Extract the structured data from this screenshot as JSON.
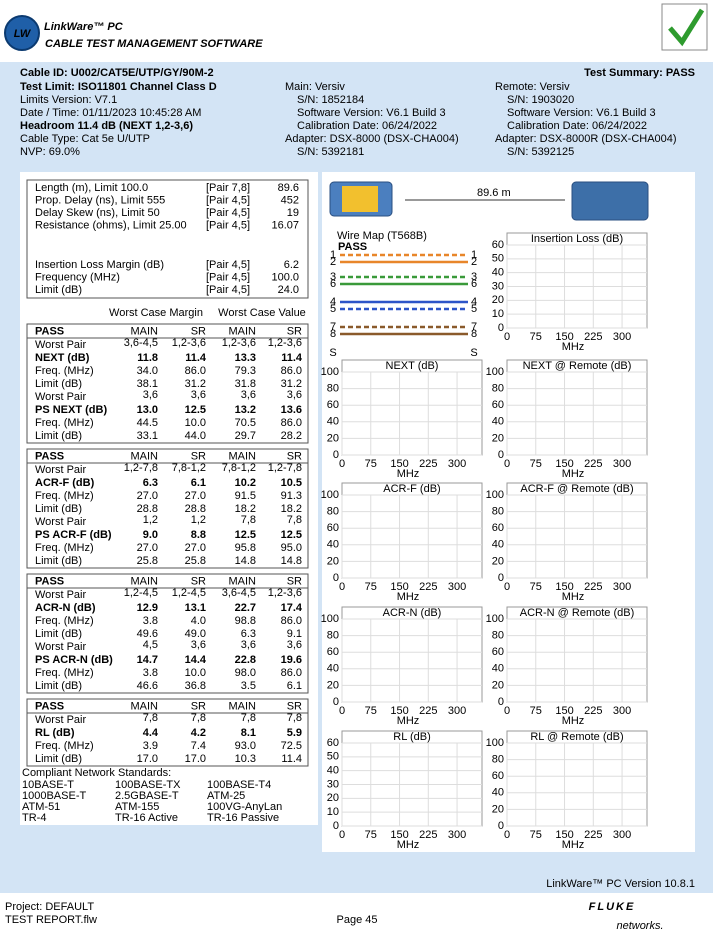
{
  "header": {
    "logo": "LW",
    "brand": "LinkWare™ PC",
    "tagline": "CABLE TEST MANAGEMENT SOFTWARE"
  },
  "summary": {
    "cable_id": "Cable ID: U002/CAT5E/UTP/GY/90M-2",
    "result": "Test Summary: PASS",
    "details": [
      "Test Limit: ISO11801 Channel Class D",
      "Limits Version: V7.1",
      "Date / Time: 01/11/2023  10:45:28 AM",
      "Headroom 11.4 dB (NEXT 1,2-3,6)",
      "Cable Type: Cat 5e U/UTP",
      "NVP: 69.0%"
    ],
    "main": [
      "Main: Versiv",
      "S/N: 1852184",
      "Software Version: V6.1 Build 3",
      "Calibration Date: 06/24/2022",
      "Adapter: DSX-8000 (DSX-CHA004)",
      "S/N: 5392181"
    ],
    "remote": [
      "Remote: Versiv",
      "S/N: 1903020",
      "Software Version: V6.1 Build 3",
      "Calibration Date: 06/24/2022",
      "Adapter: DSX-8000R (DSX-CHA004)",
      "S/N: 5392125"
    ]
  },
  "general": {
    "rows": [
      [
        "Length (m), Limit 100.0",
        "[Pair 7,8]",
        "89.6"
      ],
      [
        "Prop. Delay (ns), Limit 555",
        "[Pair 4,5]",
        "452"
      ],
      [
        "Delay Skew (ns), Limit 50",
        "[Pair 4,5]",
        "19"
      ],
      [
        "Resistance (ohms), Limit 25.00",
        "[Pair 4,5]",
        "16.07"
      ]
    ],
    "insertion_rows": [
      [
        "Insertion Loss Margin (dB)",
        "[Pair 4,5]",
        "6.2"
      ],
      [
        "Frequency (MHz)",
        "[Pair 4,5]",
        "100.0"
      ],
      [
        "Limit (dB)",
        "[Pair 4,5]",
        "24.0"
      ]
    ]
  },
  "table": {
    "headers": [
      "Worst Case Margin",
      "Worst Case Value"
    ],
    "sections": [
      {
        "columns": [
          "PASS",
          "MAIN",
          "SR",
          "MAIN",
          "SR"
        ],
        "rows": [
          [
            "Worst Pair",
            "3,6-4,5",
            "1,2-3,6",
            "1,2-3,6",
            "1,2-3,6"
          ],
          [
            "NEXT (dB)",
            "11.8",
            "11.4",
            "13.3",
            "11.4"
          ],
          [
            "Freq. (MHz)",
            "34.0",
            "86.0",
            "79.3",
            "86.0"
          ],
          [
            "Limit (dB)",
            "38.1",
            "31.2",
            "31.8",
            "31.2"
          ],
          [
            "Worst Pair",
            "3,6",
            "3,6",
            "3,6",
            "3,6"
          ],
          [
            "PS NEXT (dB)",
            "13.0",
            "12.5",
            "13.2",
            "13.6"
          ],
          [
            "Freq. (MHz)",
            "44.5",
            "10.0",
            "70.5",
            "86.0"
          ],
          [
            "Limit (dB)",
            "33.1",
            "44.0",
            "29.7",
            "28.2"
          ]
        ]
      },
      {
        "columns": [
          "PASS",
          "MAIN",
          "SR",
          "MAIN",
          "SR"
        ],
        "rows": [
          [
            "Worst Pair",
            "1,2-7,8",
            "7,8-1,2",
            "7,8-1,2",
            "1,2-7,8"
          ],
          [
            "ACR-F (dB)",
            "6.3",
            "6.1",
            "10.2",
            "10.5"
          ],
          [
            "Freq. (MHz)",
            "27.0",
            "27.0",
            "91.5",
            "91.3"
          ],
          [
            "Limit (dB)",
            "28.8",
            "28.8",
            "18.2",
            "18.2"
          ],
          [
            "Worst Pair",
            "1,2",
            "1,2",
            "7,8",
            "7,8"
          ],
          [
            "PS ACR-F (dB)",
            "9.0",
            "8.8",
            "12.5",
            "12.5"
          ],
          [
            "Freq. (MHz)",
            "27.0",
            "27.0",
            "95.8",
            "95.0"
          ],
          [
            "Limit (dB)",
            "25.8",
            "25.8",
            "14.8",
            "14.8"
          ]
        ]
      },
      {
        "columns": [
          "PASS",
          "MAIN",
          "SR",
          "MAIN",
          "SR"
        ],
        "rows": [
          [
            "Worst Pair",
            "1,2-4,5",
            "1,2-4,5",
            "3,6-4,5",
            "1,2-3,6"
          ],
          [
            "ACR-N (dB)",
            "12.9",
            "13.1",
            "22.7",
            "17.4"
          ],
          [
            "Freq. (MHz)",
            "3.8",
            "4.0",
            "98.8",
            "86.0"
          ],
          [
            "Limit (dB)",
            "49.6",
            "49.0",
            "6.3",
            "9.1"
          ],
          [
            "Worst Pair",
            "4,5",
            "3,6",
            "3,6",
            "3,6"
          ],
          [
            "PS ACR-N (dB)",
            "14.7",
            "14.4",
            "22.8",
            "19.6"
          ],
          [
            "Freq. (MHz)",
            "3.8",
            "10.0",
            "98.0",
            "86.0"
          ],
          [
            "Limit (dB)",
            "46.6",
            "36.8",
            "3.5",
            "6.1"
          ]
        ]
      },
      {
        "columns": [
          "PASS",
          "MAIN",
          "SR",
          "MAIN",
          "SR"
        ],
        "rows": [
          [
            "Worst Pair",
            "7,8",
            "7,8",
            "7,8",
            "7,8"
          ],
          [
            "RL (dB)",
            "4.4",
            "4.2",
            "8.1",
            "5.9"
          ],
          [
            "Freq. (MHz)",
            "3.9",
            "7.4",
            "93.0",
            "72.5"
          ],
          [
            "Limit (dB)",
            "17.0",
            "17.0",
            "10.3",
            "11.4"
          ]
        ]
      }
    ]
  },
  "standards": {
    "title": "Compliant Network Standards:",
    "items": [
      "10BASE-T",
      "100BASE-TX",
      "100BASE-T4",
      "1000BASE-T",
      "2.5GBASE-T",
      "ATM-25",
      "ATM-51",
      "ATM-155",
      "100VG-AnyLan",
      "TR-4",
      "TR-16 Active",
      "TR-16 Passive"
    ]
  },
  "link": {
    "length": "89.6 m"
  },
  "wire_map": {
    "title": "Wire Map (T568B)",
    "result": "PASS",
    "left_pins": [
      "1",
      "2",
      "3",
      "6",
      "4",
      "5",
      "7",
      "8",
      "S"
    ],
    "right_pins": [
      "1",
      "2",
      "3",
      "6",
      "4",
      "5",
      "7",
      "8",
      "S"
    ]
  },
  "charts": [
    {
      "title": "Insertion Loss (dB)",
      "ylim": [
        0,
        60
      ],
      "yticks": [
        0,
        10,
        20,
        30,
        40,
        50,
        60
      ],
      "xlim": [
        0,
        365
      ],
      "xticks": [
        0,
        75,
        150,
        225,
        300
      ],
      "xlabel": "MHz"
    },
    {
      "title": "NEXT (dB)",
      "ylim": [
        0,
        100
      ],
      "yticks": [
        0,
        20,
        40,
        60,
        80,
        100
      ],
      "xlim": [
        0,
        365
      ],
      "xticks": [
        0,
        75,
        150,
        225,
        300
      ],
      "xlabel": "MHz"
    },
    {
      "title": "NEXT @ Remote (dB)",
      "ylim": [
        0,
        100
      ],
      "yticks": [
        0,
        20,
        40,
        60,
        80,
        100
      ],
      "xlim": [
        0,
        365
      ],
      "xticks": [
        0,
        75,
        150,
        225,
        300
      ],
      "xlabel": "MHz"
    },
    {
      "title": "ACR-F (dB)",
      "ylim": [
        0,
        100
      ],
      "yticks": [
        0,
        20,
        40,
        60,
        80,
        100
      ],
      "xlim": [
        0,
        365
      ],
      "xticks": [
        0,
        75,
        150,
        225,
        300
      ],
      "xlabel": "MHz"
    },
    {
      "title": "ACR-F @ Remote (dB)",
      "ylim": [
        0,
        100
      ],
      "yticks": [
        0,
        20,
        40,
        60,
        80,
        100
      ],
      "xlim": [
        0,
        365
      ],
      "xticks": [
        0,
        75,
        150,
        225,
        300
      ],
      "xlabel": "MHz"
    },
    {
      "title": "ACR-N (dB)",
      "ylim": [
        0,
        100
      ],
      "yticks": [
        0,
        20,
        40,
        60,
        80,
        100
      ],
      "xlim": [
        0,
        365
      ],
      "xticks": [
        0,
        75,
        150,
        225,
        300
      ],
      "xlabel": "MHz"
    },
    {
      "title": "ACR-N @ Remote (dB)",
      "ylim": [
        0,
        100
      ],
      "yticks": [
        0,
        20,
        40,
        60,
        80,
        100
      ],
      "xlim": [
        0,
        365
      ],
      "xticks": [
        0,
        75,
        150,
        225,
        300
      ],
      "xlabel": "MHz"
    },
    {
      "title": "RL (dB)",
      "ylim": [
        0,
        60
      ],
      "yticks": [
        0,
        10,
        20,
        30,
        40,
        50,
        60
      ],
      "xlim": [
        0,
        365
      ],
      "xticks": [
        0,
        75,
        150,
        225,
        300
      ],
      "xlabel": "MHz"
    },
    {
      "title": "RL @ Remote (dB)",
      "ylim": [
        0,
        100
      ],
      "yticks": [
        0,
        20,
        40,
        60,
        80,
        100
      ],
      "xlim": [
        0,
        365
      ],
      "xticks": [
        0,
        75,
        150,
        225,
        300
      ],
      "xlabel": "MHz"
    }
  ],
  "footer": {
    "version": "LinkWare™ PC Version 10.8.1",
    "project": "Project: DEFAULT",
    "file": "TEST REPORT.flw",
    "page": "Page 45",
    "logo": "FLUKE",
    "logo_sub": "networks."
  }
}
